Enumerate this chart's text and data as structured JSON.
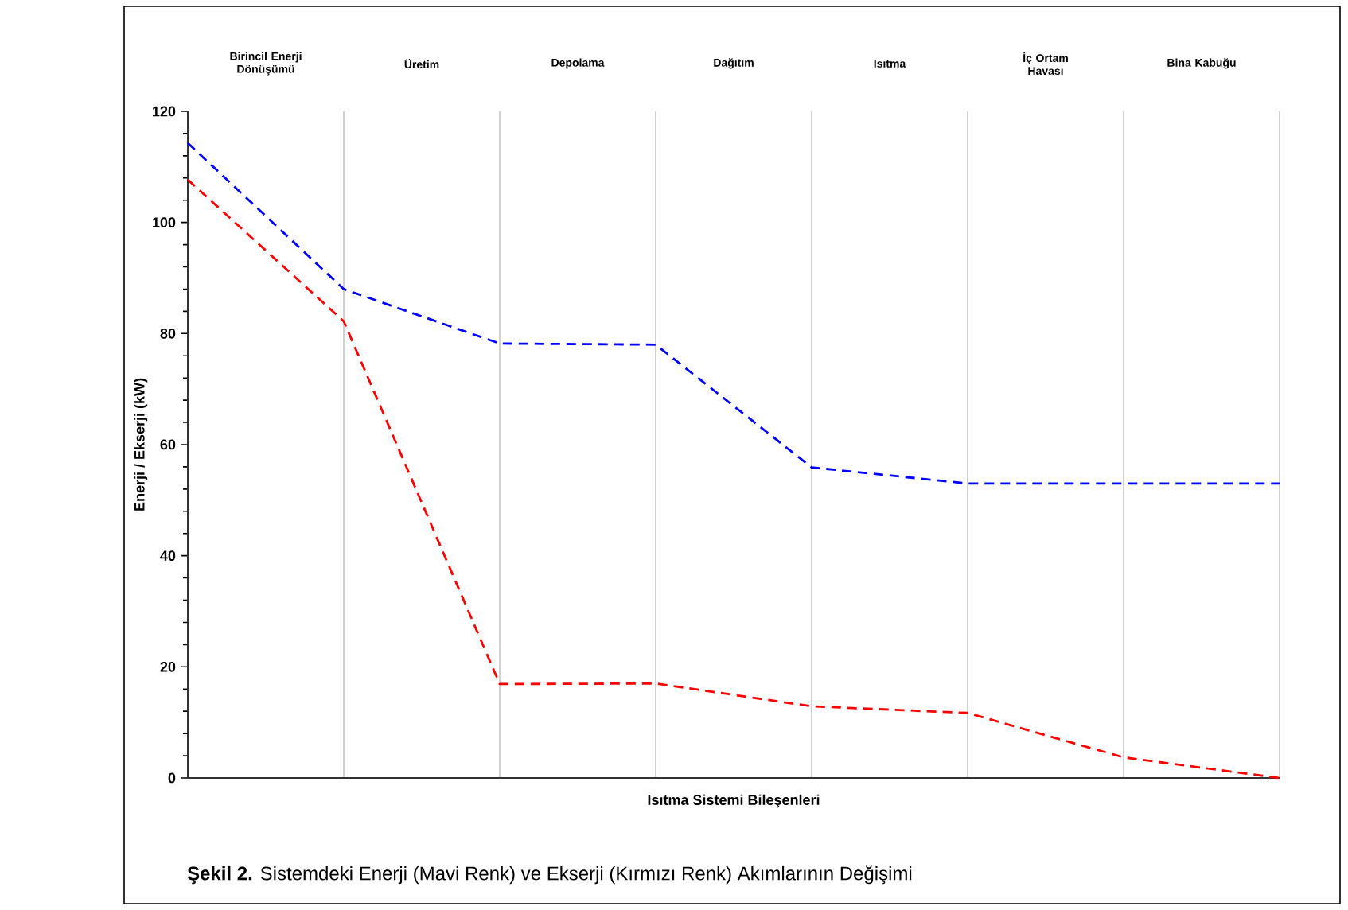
{
  "chart_data": {
    "type": "line",
    "xlabel": "Isıtma Sistemi Bileşenleri",
    "ylabel": "Enerji / Ekserji (kW)",
    "categories": [
      null,
      null,
      null,
      null,
      null,
      null,
      null,
      null
    ],
    "ylim": [
      0,
      120
    ],
    "yticks": [
      0,
      20,
      40,
      60,
      80,
      100,
      120
    ],
    "grid": "x",
    "line_style": "dashed",
    "series": [
      {
        "color": "#0000ff",
        "values": [
          114.3,
          88,
          78.2,
          78,
          55.9,
          53,
          53,
          53
        ]
      },
      {
        "color": "#ff0000",
        "values": [
          107.7,
          82.2,
          16.9,
          17,
          12.9,
          11.7,
          3.7,
          0
        ]
      }
    ],
    "annotations": [
      "Birincil Enerji Dönüşümü",
      "Üretim",
      "Depolama",
      "Dağıtım",
      "Isıtma",
      "İç Ortam Havası",
      "Bina Kabuğu",
      "**Şekil 2.** Sistemdeki Enerji (Mavi Renk) ve Ekserji (Kırmızı Renk) Akımlarının Değişimi"
    ]
  }
}
